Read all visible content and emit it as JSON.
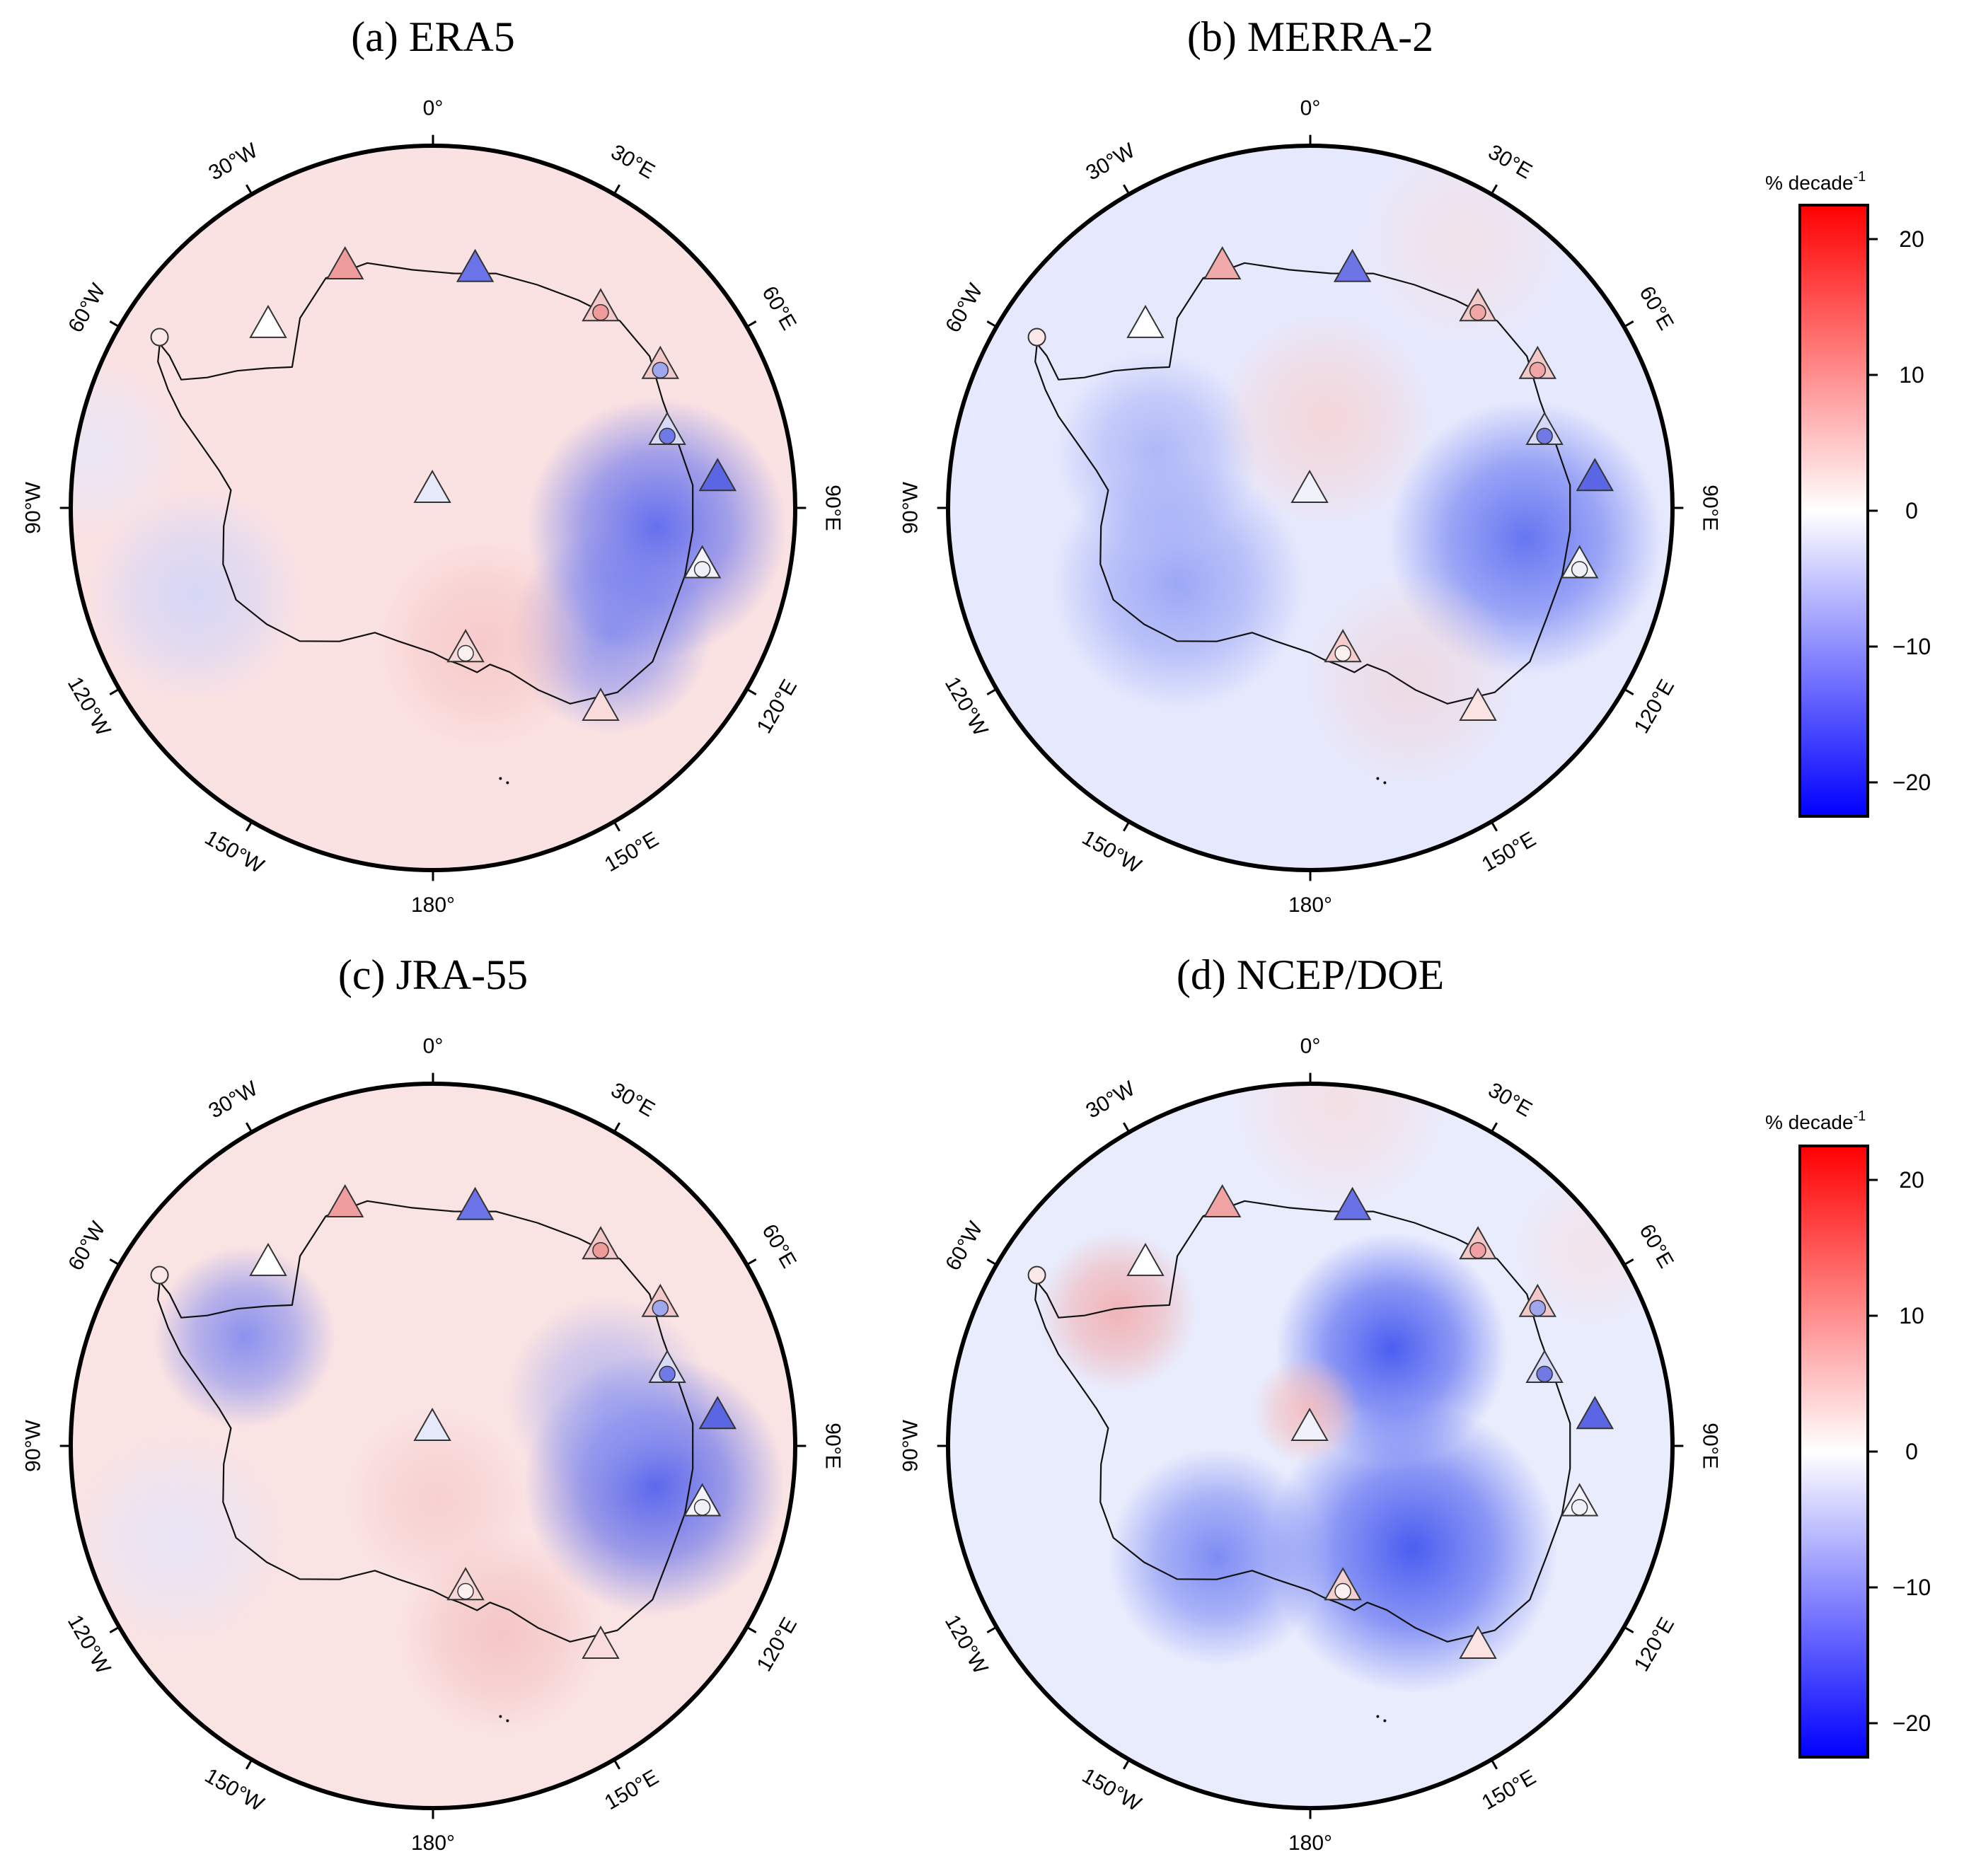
{
  "panels": [
    {
      "title": "(a) ERA5",
      "background": "#fbe2e2",
      "blobs": [
        {
          "lon": 95,
          "r": 0.62,
          "s": 0.36,
          "color": "#4a5cf0",
          "op": 0.85
        },
        {
          "lon": 125,
          "r": 0.6,
          "s": 0.28,
          "color": "#6676f2",
          "op": 0.7
        },
        {
          "lon": -110,
          "r": 0.7,
          "s": 0.3,
          "color": "#ccd3fb",
          "op": 0.8
        },
        {
          "lon": 160,
          "r": 0.4,
          "s": 0.3,
          "color": "#f6c4c4",
          "op": 0.8
        },
        {
          "lon": -80,
          "r": 0.95,
          "s": 0.25,
          "color": "#e3e7fd",
          "op": 0.7
        }
      ],
      "stations": [
        {
          "id": "s1",
          "lon": -20,
          "r": 0.71,
          "shape": "triangle",
          "color": "#ee9b9b"
        },
        {
          "id": "s2",
          "lon": 10,
          "r": 0.67,
          "shape": "triangle",
          "color": "#6b73e8"
        },
        {
          "id": "s3",
          "lon": 40,
          "r": 0.72,
          "shape": "triangle",
          "color": "#f3c8c8",
          "inner": "#f09a9a"
        },
        {
          "id": "s4",
          "lon": -42,
          "r": 0.68,
          "shape": "triangle",
          "color": "#ffffff"
        },
        {
          "id": "s5",
          "lon": 58,
          "r": 0.74,
          "shape": "triangle",
          "color": "#f3c8c8",
          "inner": "#9fa8ef"
        },
        {
          "id": "s6",
          "lon": 72,
          "r": 0.68,
          "shape": "triangle",
          "color": "#d6daf7",
          "inner": "#6f7ae6"
        },
        {
          "id": "s7",
          "lon": 84,
          "r": 0.79,
          "shape": "triangle",
          "color": "#5a66e3"
        },
        {
          "id": "s8",
          "lon": 102,
          "r": 0.76,
          "shape": "triangle",
          "color": "#f3f3fd",
          "inner": "#f0f0f8"
        },
        {
          "id": "s9",
          "lon": 167,
          "r": 0.4,
          "shape": "triangle",
          "color": "#f6d8d8",
          "inner": "#fdf0f0"
        },
        {
          "id": "s10",
          "lon": 140,
          "r": 0.72,
          "shape": "triangle",
          "color": "#fadcdc"
        },
        {
          "id": "s11",
          "lon": -2,
          "r": 0.05,
          "shape": "triangle",
          "color": "#e6e9fa"
        },
        {
          "id": "s12",
          "lon": -58,
          "r": 0.89,
          "shape": "circle",
          "color": "#fbe7e7"
        }
      ]
    },
    {
      "title": "(b) MERRA-2",
      "background": "#e6e9fd",
      "blobs": [
        {
          "lon": 98,
          "r": 0.6,
          "s": 0.38,
          "color": "#4f62ef",
          "op": 0.85
        },
        {
          "lon": -120,
          "r": 0.42,
          "s": 0.35,
          "color": "#7d8bf3",
          "op": 0.7
        },
        {
          "lon": -70,
          "r": 0.45,
          "s": 0.28,
          "color": "#97a2f5",
          "op": 0.7
        },
        {
          "lon": 10,
          "r": 0.25,
          "s": 0.3,
          "color": "#f6d3d3",
          "op": 0.85
        },
        {
          "lon": 150,
          "r": 0.55,
          "s": 0.3,
          "color": "#f3cece",
          "op": 0.55
        },
        {
          "lon": 30,
          "r": 0.85,
          "s": 0.3,
          "color": "#f8dede",
          "op": 0.6
        }
      ],
      "stations": [
        {
          "id": "s1",
          "lon": -20,
          "r": 0.71,
          "shape": "triangle",
          "color": "#f1a9a9"
        },
        {
          "id": "s2",
          "lon": 10,
          "r": 0.67,
          "shape": "triangle",
          "color": "#6d75e6"
        },
        {
          "id": "s3",
          "lon": 40,
          "r": 0.72,
          "shape": "triangle",
          "color": "#f3c8c8",
          "inner": "#f0a6a6"
        },
        {
          "id": "s4",
          "lon": -42,
          "r": 0.68,
          "shape": "triangle",
          "color": "#ffffff"
        },
        {
          "id": "s5",
          "lon": 58,
          "r": 0.74,
          "shape": "triangle",
          "color": "#f3c8c8",
          "inner": "#f0a6a6"
        },
        {
          "id": "s6",
          "lon": 72,
          "r": 0.68,
          "shape": "triangle",
          "color": "#d6daf7",
          "inner": "#6f7ae6"
        },
        {
          "id": "s7",
          "lon": 84,
          "r": 0.79,
          "shape": "triangle",
          "color": "#5a66e3"
        },
        {
          "id": "s8",
          "lon": 102,
          "r": 0.76,
          "shape": "triangle",
          "color": "#f3f3fd",
          "inner": "#f0f0f8"
        },
        {
          "id": "s9",
          "lon": 167,
          "r": 0.4,
          "shape": "triangle",
          "color": "#f6cdcd",
          "inner": "#fdf0f0"
        },
        {
          "id": "s10",
          "lon": 140,
          "r": 0.72,
          "shape": "triangle",
          "color": "#fbe3e3"
        },
        {
          "id": "s11",
          "lon": -2,
          "r": 0.05,
          "shape": "triangle",
          "color": "#f0f1fb"
        },
        {
          "id": "s12",
          "lon": -58,
          "r": 0.89,
          "shape": "circle",
          "color": "#fbe7e7"
        }
      ]
    },
    {
      "title": "(c) JRA-55",
      "background": "#fae3e3",
      "blobs": [
        {
          "lon": 100,
          "r": 0.62,
          "s": 0.36,
          "color": "#3f52ee",
          "op": 0.85
        },
        {
          "lon": 75,
          "r": 0.5,
          "s": 0.28,
          "color": "#8d99f4",
          "op": 0.6
        },
        {
          "lon": -60,
          "r": 0.6,
          "s": 0.25,
          "color": "#6676f2",
          "op": 0.75
        },
        {
          "lon": -110,
          "r": 0.75,
          "s": 0.3,
          "color": "#e1e5fd",
          "op": 0.7
        },
        {
          "lon": 160,
          "r": 0.55,
          "s": 0.28,
          "color": "#f3bcbc",
          "op": 0.75
        },
        {
          "lon": 175,
          "r": 0.15,
          "s": 0.25,
          "color": "#f6c8c8",
          "op": 0.7
        }
      ],
      "stations": [
        {
          "id": "s1",
          "lon": -20,
          "r": 0.71,
          "shape": "triangle",
          "color": "#ef9d9d"
        },
        {
          "id": "s2",
          "lon": 10,
          "r": 0.67,
          "shape": "triangle",
          "color": "#6b73e8"
        },
        {
          "id": "s3",
          "lon": 40,
          "r": 0.72,
          "shape": "triangle",
          "color": "#f3c8c8",
          "inner": "#f09a9a"
        },
        {
          "id": "s4",
          "lon": -42,
          "r": 0.68,
          "shape": "triangle",
          "color": "#ffffff"
        },
        {
          "id": "s5",
          "lon": 58,
          "r": 0.74,
          "shape": "triangle",
          "color": "#f3c8c8",
          "inner": "#9fa8ef"
        },
        {
          "id": "s6",
          "lon": 72,
          "r": 0.68,
          "shape": "triangle",
          "color": "#d6daf7",
          "inner": "#6f7ae6"
        },
        {
          "id": "s7",
          "lon": 84,
          "r": 0.79,
          "shape": "triangle",
          "color": "#5a66e3"
        },
        {
          "id": "s8",
          "lon": 102,
          "r": 0.76,
          "shape": "triangle",
          "color": "#f3f3fd",
          "inner": "#f0f0f8"
        },
        {
          "id": "s9",
          "lon": 167,
          "r": 0.4,
          "shape": "triangle",
          "color": "#f6d8d8",
          "inner": "#fdf0f0"
        },
        {
          "id": "s10",
          "lon": 140,
          "r": 0.72,
          "shape": "triangle",
          "color": "#fadcdc"
        },
        {
          "id": "s11",
          "lon": -2,
          "r": 0.05,
          "shape": "triangle",
          "color": "#e6e9fa"
        },
        {
          "id": "s12",
          "lon": -58,
          "r": 0.89,
          "shape": "circle",
          "color": "#fbe7e7"
        }
      ]
    },
    {
      "title": "(d) NCEP/DOE",
      "background": "#e9ecfd",
      "blobs": [
        {
          "lon": 40,
          "r": 0.35,
          "s": 0.32,
          "color": "#2f45ee",
          "op": 0.85
        },
        {
          "lon": 135,
          "r": 0.4,
          "s": 0.4,
          "color": "#2f45ee",
          "op": 0.85
        },
        {
          "lon": -140,
          "r": 0.4,
          "s": 0.3,
          "color": "#5a6cf0",
          "op": 0.75
        },
        {
          "lon": -55,
          "r": 0.65,
          "s": 0.22,
          "color": "#f2aaaa",
          "op": 0.85
        },
        {
          "lon": -5,
          "r": 0.1,
          "s": 0.15,
          "color": "#f5b9b9",
          "op": 0.85
        },
        {
          "lon": 5,
          "r": 0.95,
          "s": 0.3,
          "color": "#f8dada",
          "op": 0.7
        },
        {
          "lon": 55,
          "r": 0.95,
          "s": 0.22,
          "color": "#f8dede",
          "op": 0.6
        }
      ],
      "stations": [
        {
          "id": "s1",
          "lon": -20,
          "r": 0.71,
          "shape": "triangle",
          "color": "#f0a3a3"
        },
        {
          "id": "s2",
          "lon": 10,
          "r": 0.67,
          "shape": "triangle",
          "color": "#6870e6"
        },
        {
          "id": "s3",
          "lon": 40,
          "r": 0.72,
          "shape": "triangle",
          "color": "#f3c8c8",
          "inner": "#f0a0a0"
        },
        {
          "id": "s4",
          "lon": -42,
          "r": 0.68,
          "shape": "triangle",
          "color": "#ffffff"
        },
        {
          "id": "s5",
          "lon": 58,
          "r": 0.74,
          "shape": "triangle",
          "color": "#f3c8c8",
          "inner": "#9fa8ef"
        },
        {
          "id": "s6",
          "lon": 72,
          "r": 0.68,
          "shape": "triangle",
          "color": "#d6daf7",
          "inner": "#6f7ae6"
        },
        {
          "id": "s7",
          "lon": 84,
          "r": 0.79,
          "shape": "triangle",
          "color": "#5a66e3"
        },
        {
          "id": "s8",
          "lon": 102,
          "r": 0.76,
          "shape": "triangle",
          "color": "#f3f3fd",
          "inner": "#f0f0f8"
        },
        {
          "id": "s9",
          "lon": 167,
          "r": 0.4,
          "shape": "triangle",
          "color": "#f6d0d0",
          "inner": "#fdf0f0"
        },
        {
          "id": "s10",
          "lon": 140,
          "r": 0.72,
          "shape": "triangle",
          "color": "#fbe3e3"
        },
        {
          "id": "s11",
          "lon": -2,
          "r": 0.05,
          "shape": "triangle",
          "color": "#f0f1fb"
        },
        {
          "id": "s12",
          "lon": -58,
          "r": 0.89,
          "shape": "circle",
          "color": "#fbe7e7"
        }
      ]
    }
  ],
  "longitude_labels": [
    {
      "lon": 0,
      "text": "0°"
    },
    {
      "lon": 30,
      "text": "30°E"
    },
    {
      "lon": 60,
      "text": "60°E"
    },
    {
      "lon": 90,
      "text": "90°E"
    },
    {
      "lon": 120,
      "text": "120°E"
    },
    {
      "lon": 150,
      "text": "150°E"
    },
    {
      "lon": 180,
      "text": "180°"
    },
    {
      "lon": -150,
      "text": "150°W"
    },
    {
      "lon": -120,
      "text": "120°W"
    },
    {
      "lon": -90,
      "text": "90°W"
    },
    {
      "lon": -60,
      "text": "60°W"
    },
    {
      "lon": -30,
      "text": "30°W"
    }
  ],
  "colorbar": {
    "unit_label": "% decade",
    "unit_superscript": "-1",
    "min": -22.5,
    "max": 22.5,
    "ticks": [
      20,
      10,
      0,
      -10,
      -20
    ],
    "tick_labels": [
      "20",
      "10",
      "0",
      "−10",
      "−20"
    ],
    "colors": {
      "max": "#ff0000",
      "mid": "#ffffff",
      "min": "#0000ff"
    }
  },
  "coastline": [
    [
      -45,
      0.55
    ],
    [
      -35,
      0.64
    ],
    [
      -25,
      0.7
    ],
    [
      -15,
      0.7
    ],
    [
      -5,
      0.66
    ],
    [
      5,
      0.65
    ],
    [
      15,
      0.67
    ],
    [
      25,
      0.68
    ],
    [
      35,
      0.7
    ],
    [
      45,
      0.73
    ],
    [
      55,
      0.73
    ],
    [
      65,
      0.7
    ],
    [
      75,
      0.7
    ],
    [
      85,
      0.72
    ],
    [
      95,
      0.72
    ],
    [
      105,
      0.72
    ],
    [
      115,
      0.72
    ],
    [
      125,
      0.74
    ],
    [
      135,
      0.72
    ],
    [
      145,
      0.66
    ],
    [
      150,
      0.58
    ],
    [
      155,
      0.5
    ],
    [
      160,
      0.46
    ],
    [
      165,
      0.47
    ],
    [
      170,
      0.44
    ],
    [
      175,
      0.42
    ],
    [
      180,
      0.4
    ],
    [
      -175,
      0.39
    ],
    [
      -165,
      0.38
    ],
    [
      -155,
      0.38
    ],
    [
      -145,
      0.45
    ],
    [
      -135,
      0.52
    ],
    [
      -125,
      0.56
    ],
    [
      -115,
      0.6
    ],
    [
      -105,
      0.6
    ],
    [
      -95,
      0.58
    ],
    [
      -85,
      0.56
    ],
    [
      -80,
      0.6
    ],
    [
      -75,
      0.66
    ],
    [
      -70,
      0.74
    ],
    [
      -66,
      0.8
    ],
    [
      -62,
      0.86
    ],
    [
      -59,
      0.88
    ],
    [
      -60,
      0.84
    ],
    [
      -63,
      0.78
    ],
    [
      -60,
      0.72
    ],
    [
      -55,
      0.66
    ],
    [
      -50,
      0.6
    ]
  ]
}
